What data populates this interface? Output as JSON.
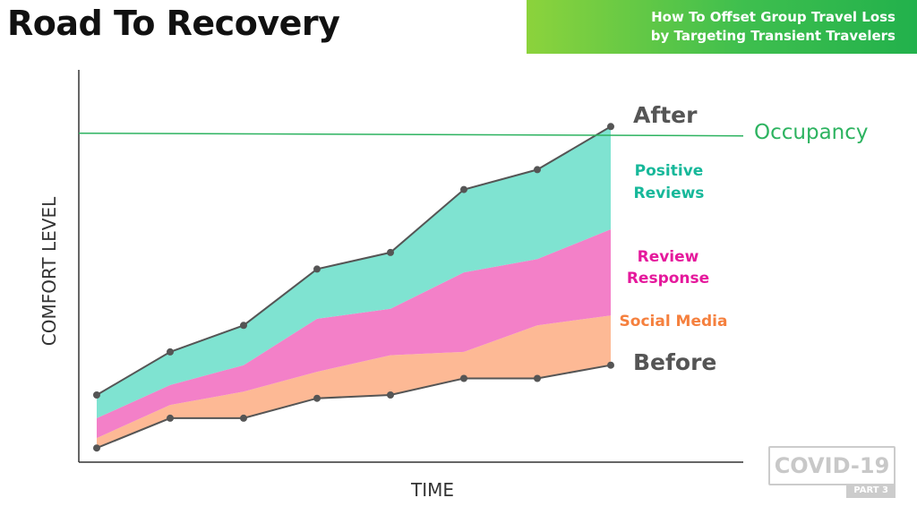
{
  "page": {
    "title": "Road To Recovery",
    "banner_line1": "How To Offset Group Travel Loss",
    "banner_line2": "by Targeting Transient Travelers",
    "badge_text": "COVID-19",
    "badge_part": "PART 3"
  },
  "chart_data": {
    "type": "area",
    "xlabel": "TIME",
    "ylabel": "COMFORT LEVEL",
    "x": [
      1,
      2,
      3,
      4,
      5,
      6,
      7,
      8
    ],
    "ylim": [
      0,
      100
    ],
    "lines": {
      "before": {
        "label": "Before",
        "color": "#555555",
        "values": [
          4,
          13,
          13,
          19,
          20,
          25,
          25,
          29
        ]
      },
      "after": {
        "label": "After",
        "color": "#555555",
        "values": [
          20,
          33,
          41,
          58,
          63,
          82,
          88,
          101
        ]
      }
    },
    "series": [
      {
        "name": "Social Media",
        "color": "#fdb995",
        "label_color": "#f5803e",
        "values": [
          7,
          17,
          21,
          27,
          32,
          33,
          41,
          44
        ]
      },
      {
        "name": "Review Response",
        "color": "#f380c8",
        "label_color": "#e5199c",
        "values": [
          13,
          23,
          29,
          43,
          46,
          57,
          61,
          70
        ]
      },
      {
        "name": "Positive Reviews",
        "color": "#7fe3d1",
        "label_color": "#17b89a",
        "values": [
          20,
          33,
          41,
          58,
          63,
          82,
          88,
          101
        ]
      }
    ],
    "reference_line": {
      "label": "Occupancy",
      "value": 99,
      "color": "#2db360"
    },
    "labels": {
      "after": "After",
      "occupancy": "Occupancy",
      "positive_reviews_1": "Positive",
      "positive_reviews_2": "Reviews",
      "review_response_1": "Review",
      "review_response_2": "Response",
      "social_media": "Social Media",
      "before": "Before"
    }
  }
}
